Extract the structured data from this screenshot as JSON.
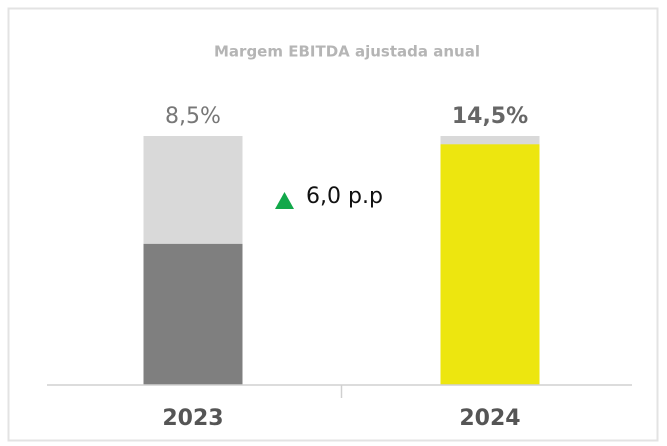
{
  "chart_data": {
    "type": "bar",
    "title": "Margem EBITDA ajustada anual",
    "categories": [
      "2023",
      "2024"
    ],
    "values": [
      8.5,
      14.5
    ],
    "value_labels": [
      "8,5%",
      "14,5%"
    ],
    "colors": [
      "#7f7f7f",
      "#ede60f"
    ],
    "ylim": [
      0,
      15
    ],
    "annotation": "6,0 p.p"
  }
}
